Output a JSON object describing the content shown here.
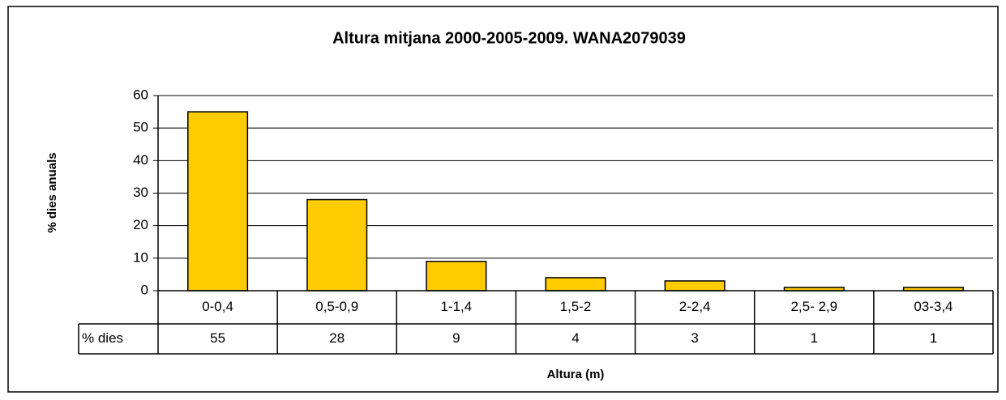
{
  "chart_data": {
    "type": "bar",
    "title": "Altura mitjana 2000-2005-2009. WANA2079039",
    "x_label": "Altura (m)",
    "y_label": "% dies anuals",
    "categories": [
      "0-0,4",
      "0,5-0,9",
      "1-1,4",
      "1,5-2",
      "2-2,4",
      "2,5- 2,9",
      "03-3,4"
    ],
    "series": [
      {
        "name": "% dies",
        "color": "#ffcc00",
        "values": [
          55,
          28,
          9,
          4,
          3,
          1,
          1
        ]
      }
    ],
    "ylim": [
      0,
      60
    ],
    "yticks": [
      0,
      10,
      20,
      30,
      40,
      50,
      60
    ],
    "grid": true,
    "data_table": true
  }
}
